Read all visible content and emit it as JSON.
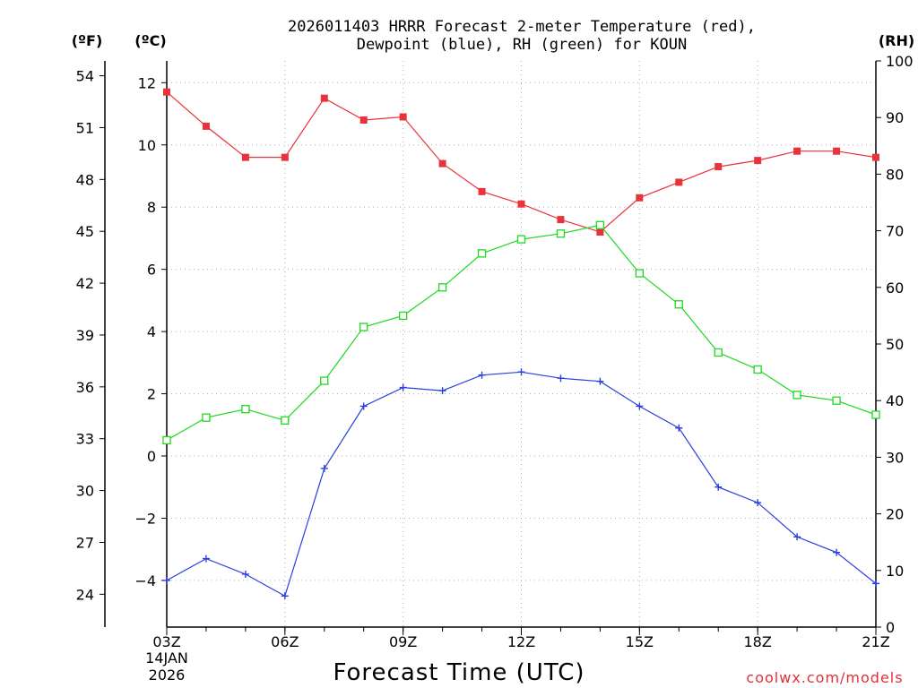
{
  "chart_data": {
    "type": "line",
    "title": "2026011403 HRRR Forecast 2-meter Temperature (red),",
    "subtitle": "Dewpoint (blue), RH (green) for KOUN",
    "xlabel": "Forecast Time (UTC)",
    "credit": "coolwx.com/models",
    "units": {
      "fahrenheit": "(ºF)",
      "celsius": "(ºC)",
      "rh": "(RH)"
    },
    "x_hours": [
      3,
      4,
      5,
      6,
      7,
      8,
      9,
      10,
      11,
      12,
      13,
      14,
      15,
      16,
      17,
      18,
      19,
      20,
      21
    ],
    "x_ticks": [
      {
        "hour": 3,
        "label": "03Z"
      },
      {
        "hour": 6,
        "label": "06Z"
      },
      {
        "hour": 9,
        "label": "09Z"
      },
      {
        "hour": 12,
        "label": "12Z"
      },
      {
        "hour": 15,
        "label": "15Z"
      },
      {
        "hour": 18,
        "label": "18Z"
      },
      {
        "hour": 21,
        "label": "21Z"
      }
    ],
    "date_label": [
      "14JAN",
      "2026"
    ],
    "xlim": [
      3,
      21
    ],
    "celsius_axis": {
      "ylim": [
        -5.5,
        12.7
      ],
      "ticks": [
        "12",
        "10",
        "8",
        "6",
        "4",
        "2",
        "0",
        "−2",
        "−4"
      ],
      "tick_values": [
        12,
        10,
        8,
        6,
        4,
        2,
        0,
        -2,
        -4
      ]
    },
    "fahrenheit_axis": {
      "ticks": [
        "54",
        "51",
        "48",
        "45",
        "42",
        "39",
        "36",
        "33",
        "30",
        "27",
        "24"
      ],
      "tick_values": [
        54,
        51,
        48,
        45,
        42,
        39,
        36,
        33,
        30,
        27,
        24
      ]
    },
    "rh_axis": {
      "ylim": [
        0,
        100
      ],
      "ticks": [
        "100",
        "90",
        "80",
        "70",
        "60",
        "50",
        "40",
        "30",
        "20",
        "10",
        "0"
      ],
      "tick_values": [
        100,
        90,
        80,
        70,
        60,
        50,
        40,
        30,
        20,
        10,
        0
      ]
    },
    "series": [
      {
        "name": "Temperature",
        "color": "#e8333a",
        "axis": "celsius",
        "marker": "filled-square",
        "values": [
          11.7,
          10.6,
          9.6,
          9.6,
          11.5,
          10.8,
          10.9,
          9.4,
          8.5,
          8.1,
          7.6,
          7.2,
          8.3,
          8.8,
          9.3,
          9.5,
          9.8,
          9.8,
          9.6
        ]
      },
      {
        "name": "Dewpoint",
        "color": "#2a3fe0",
        "axis": "celsius",
        "marker": "plus",
        "values": [
          -4.0,
          -3.3,
          -3.8,
          -4.5,
          -0.4,
          1.6,
          2.2,
          2.1,
          2.6,
          2.7,
          2.5,
          2.4,
          1.6,
          0.9,
          -1.0,
          -1.5,
          -2.6,
          -3.1,
          -4.1
        ]
      },
      {
        "name": "RH",
        "color": "#1fd81f",
        "axis": "rh",
        "marker": "open-square",
        "values": [
          33,
          37,
          38.5,
          36.5,
          43.5,
          53,
          55,
          60,
          66,
          68.5,
          69.5,
          71,
          62.5,
          57,
          48.5,
          45.5,
          41,
          40,
          37.5
        ]
      }
    ],
    "grid": true
  }
}
